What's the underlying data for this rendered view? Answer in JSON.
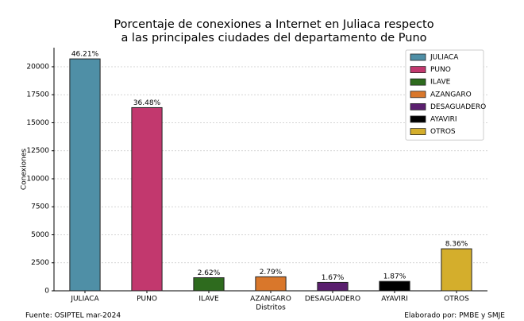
{
  "chart_data": {
    "type": "bar",
    "title": [
      "Porcentaje de conexiones a Internet en Juliaca respecto",
      "a las principales ciudades del departamento de Puno"
    ],
    "x_label": "Distritos",
    "y_label": "Conexiones",
    "categories": [
      "JULIACA",
      "PUNO",
      "ILAVE",
      "AZANGARO",
      "DESAGUADERO",
      "AYAVIRI",
      "OTROS"
    ],
    "values": [
      20700,
      16350,
      1170,
      1250,
      750,
      840,
      3750
    ],
    "share_labels": [
      "46.21%",
      "36.48%",
      "2.62%",
      "2.79%",
      "1.67%",
      "1.87%",
      "8.36%"
    ],
    "colors": [
      "#4f8fa6",
      "#c2386e",
      "#2e6b1e",
      "#d9772b",
      "#5a1f6e",
      "#000000",
      "#d4ae2c"
    ],
    "ylim": [
      0,
      21700
    ],
    "yticks": [
      0,
      2500,
      5000,
      7500,
      10000,
      12500,
      15000,
      17500,
      20000
    ],
    "grid": true,
    "legend": "upper right",
    "source": "Fuente: OSIPTEL mar-2024",
    "credit": "Elaborado por: PMBE y SMJE"
  }
}
